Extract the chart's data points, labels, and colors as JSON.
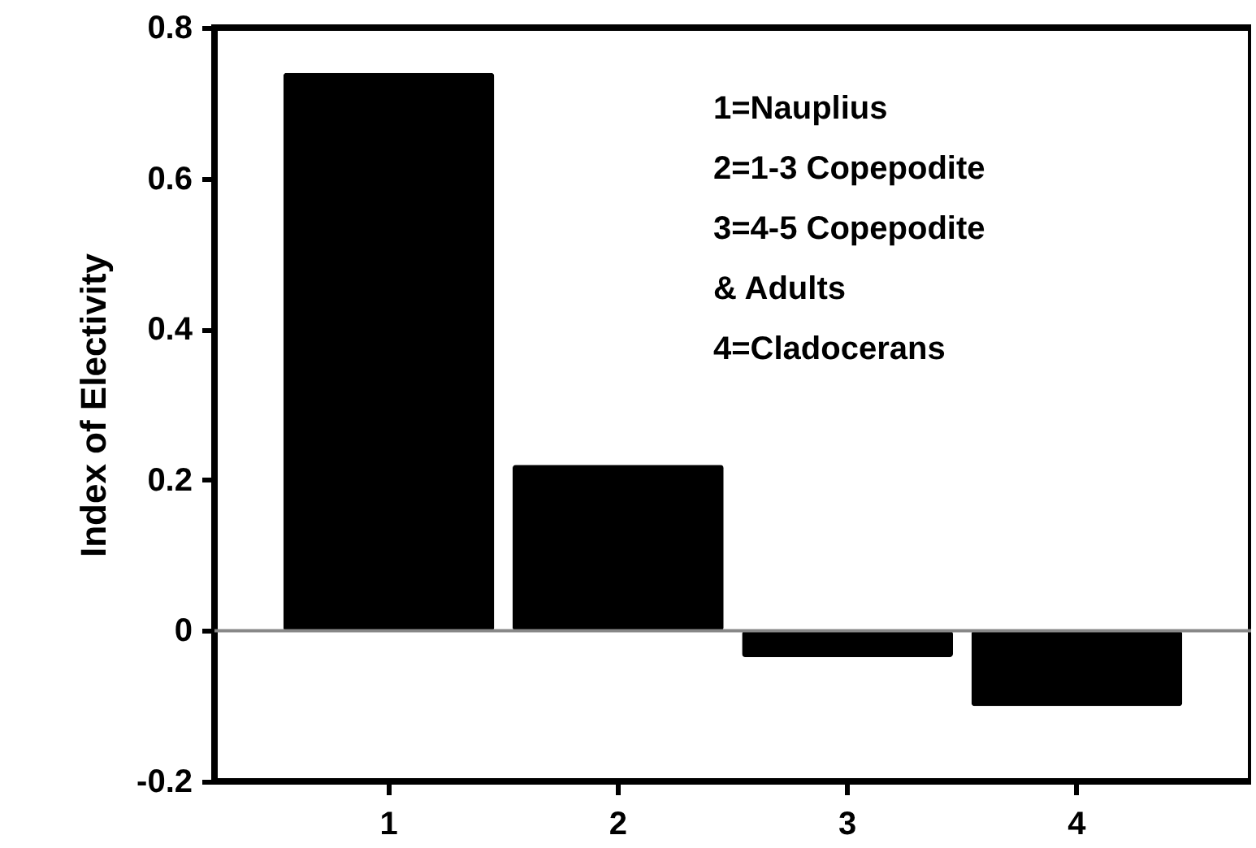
{
  "chart_data": {
    "type": "bar",
    "ylabel": "Index of Electivity",
    "categories": [
      "1",
      "2",
      "3",
      "4"
    ],
    "series": [
      {
        "color": "#000000",
        "values": [
          0.74,
          0.22,
          -0.035,
          -0.1
        ]
      }
    ],
    "ylim": [
      -0.2,
      0.8
    ],
    "yticks": [
      -0.2,
      0,
      0.2,
      0.4,
      0.6,
      0.8
    ],
    "grid": false,
    "ref_lines": [
      {
        "axis": "y",
        "value": 0,
        "color": "#888888"
      }
    ],
    "annotations": [
      "1=Nauplius",
      "2=1-3 Copepodite",
      "3=4-5 Copepodite\n& Adults",
      "4=Cladocerans"
    ]
  }
}
